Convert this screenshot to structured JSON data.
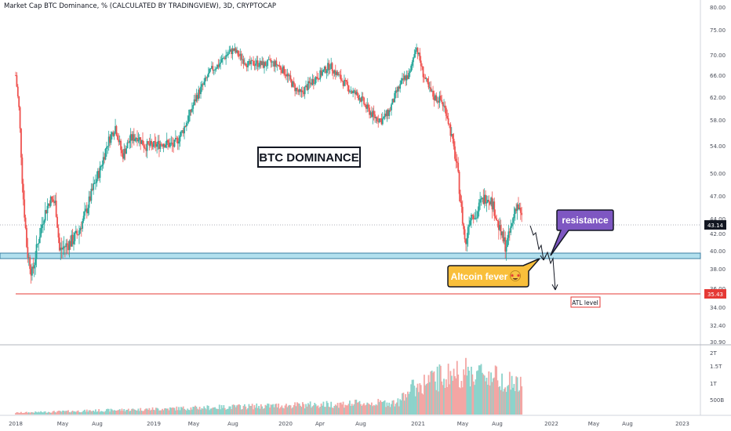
{
  "header": {
    "title": "Market Cap BTC Dominance, % (CALCULATED BY TRADINGVIEW), 3D, CRYPTOCAP"
  },
  "chart_data": [
    {
      "type": "candlestick",
      "title": "Market Cap BTC Dominance, % (CALCULATED BY TRADINGVIEW), 3D, CRYPTOCAP",
      "y_unit": "%",
      "ylim": [
        30.9,
        80.0
      ],
      "y_ticks": [
        "80.00",
        "75.00",
        "70.00",
        "66.00",
        "62.00",
        "58.00",
        "54.00",
        "50.00",
        "47.00",
        "44.00",
        "42.00",
        "40.00",
        "38.00",
        "36.00",
        "34.00",
        "32.40",
        "30.90"
      ],
      "x_ticks": [
        "2018",
        "May",
        "Aug",
        "2019",
        "May",
        "Aug",
        "2020",
        "Apr",
        "Aug",
        "2021",
        "May",
        "Aug",
        "2022",
        "May",
        "Aug",
        "2023"
      ],
      "close_points": [
        {
          "x": "2018-01-01",
          "y": 66.0
        },
        {
          "x": "2018-01-10",
          "y": 60.0
        },
        {
          "x": "2018-01-20",
          "y": 48.0
        },
        {
          "x": "2018-02-01",
          "y": 40.0
        },
        {
          "x": "2018-02-15",
          "y": 37.5
        },
        {
          "x": "2018-03-01",
          "y": 40.5
        },
        {
          "x": "2018-03-20",
          "y": 44.5
        },
        {
          "x": "2018-04-05",
          "y": 46.5
        },
        {
          "x": "2018-04-20",
          "y": 46.0
        },
        {
          "x": "2018-05-01",
          "y": 40.0
        },
        {
          "x": "2018-05-15",
          "y": 40.5
        },
        {
          "x": "2018-06-01",
          "y": 41.0
        },
        {
          "x": "2018-06-20",
          "y": 42.0
        },
        {
          "x": "2018-07-10",
          "y": 44.5
        },
        {
          "x": "2018-08-01",
          "y": 48.0
        },
        {
          "x": "2018-08-20",
          "y": 50.5
        },
        {
          "x": "2018-09-10",
          "y": 54.5
        },
        {
          "x": "2018-10-01",
          "y": 57.0
        },
        {
          "x": "2018-10-20",
          "y": 52.5
        },
        {
          "x": "2018-11-10",
          "y": 55.0
        },
        {
          "x": "2018-12-01",
          "y": 55.5
        },
        {
          "x": "2018-12-20",
          "y": 54.0
        },
        {
          "x": "2019-01-15",
          "y": 54.0
        },
        {
          "x": "2019-02-10",
          "y": 54.5
        },
        {
          "x": "2019-03-10",
          "y": 54.0
        },
        {
          "x": "2019-04-01",
          "y": 56.0
        },
        {
          "x": "2019-04-20",
          "y": 58.5
        },
        {
          "x": "2019-05-10",
          "y": 62.0
        },
        {
          "x": "2019-06-01",
          "y": 64.5
        },
        {
          "x": "2019-06-20",
          "y": 67.0
        },
        {
          "x": "2019-07-10",
          "y": 68.0
        },
        {
          "x": "2019-08-01",
          "y": 70.0
        },
        {
          "x": "2019-08-20",
          "y": 71.0
        },
        {
          "x": "2019-09-10",
          "y": 69.5
        },
        {
          "x": "2019-10-01",
          "y": 68.0
        },
        {
          "x": "2019-10-20",
          "y": 68.5
        },
        {
          "x": "2019-11-10",
          "y": 68.0
        },
        {
          "x": "2019-12-01",
          "y": 68.5
        },
        {
          "x": "2019-12-20",
          "y": 68.0
        },
        {
          "x": "2020-01-10",
          "y": 66.5
        },
        {
          "x": "2020-02-01",
          "y": 64.0
        },
        {
          "x": "2020-02-20",
          "y": 62.5
        },
        {
          "x": "2020-03-10",
          "y": 64.0
        },
        {
          "x": "2020-04-01",
          "y": 65.5
        },
        {
          "x": "2020-04-20",
          "y": 66.5
        },
        {
          "x": "2020-05-10",
          "y": 68.0
        },
        {
          "x": "2020-06-01",
          "y": 66.0
        },
        {
          "x": "2020-06-20",
          "y": 64.5
        },
        {
          "x": "2020-07-10",
          "y": 63.0
        },
        {
          "x": "2020-08-01",
          "y": 62.0
        },
        {
          "x": "2020-08-20",
          "y": 60.0
        },
        {
          "x": "2020-09-10",
          "y": 58.5
        },
        {
          "x": "2020-10-01",
          "y": 58.0
        },
        {
          "x": "2020-10-20",
          "y": 59.5
        },
        {
          "x": "2020-11-10",
          "y": 63.0
        },
        {
          "x": "2020-12-01",
          "y": 65.5
        },
        {
          "x": "2020-12-15",
          "y": 66.0
        },
        {
          "x": "2021-01-01",
          "y": 72.0
        },
        {
          "x": "2021-01-10",
          "y": 69.5
        },
        {
          "x": "2021-01-20",
          "y": 66.5
        },
        {
          "x": "2021-02-05",
          "y": 63.5
        },
        {
          "x": "2021-02-20",
          "y": 62.0
        },
        {
          "x": "2021-03-10",
          "y": 61.5
        },
        {
          "x": "2021-03-25",
          "y": 59.5
        },
        {
          "x": "2021-04-05",
          "y": 56.5
        },
        {
          "x": "2021-04-15",
          "y": 53.5
        },
        {
          "x": "2021-04-25",
          "y": 50.5
        },
        {
          "x": "2021-05-05",
          "y": 45.5
        },
        {
          "x": "2021-05-12",
          "y": 42.5
        },
        {
          "x": "2021-05-18",
          "y": 40.5
        },
        {
          "x": "2021-05-25",
          "y": 43.5
        },
        {
          "x": "2021-06-05",
          "y": 45.0
        },
        {
          "x": "2021-06-15",
          "y": 44.0
        },
        {
          "x": "2021-06-25",
          "y": 46.0
        },
        {
          "x": "2021-07-05",
          "y": 46.5
        },
        {
          "x": "2021-07-15",
          "y": 47.0
        },
        {
          "x": "2021-07-25",
          "y": 46.5
        },
        {
          "x": "2021-08-05",
          "y": 45.0
        },
        {
          "x": "2021-08-15",
          "y": 43.0
        },
        {
          "x": "2021-08-25",
          "y": 41.5
        },
        {
          "x": "2021-09-05",
          "y": 40.5
        },
        {
          "x": "2021-09-12",
          "y": 41.5
        },
        {
          "x": "2021-09-20",
          "y": 43.0
        },
        {
          "x": "2021-09-28",
          "y": 45.0
        },
        {
          "x": "2021-10-05",
          "y": 46.0
        },
        {
          "x": "2021-10-12",
          "y": 45.0
        },
        {
          "x": "2021-10-20",
          "y": 43.5
        }
      ],
      "volume_axis": {
        "ticks": [
          "2T",
          "1.5T",
          "1T",
          "500B"
        ],
        "max": 2000000000000
      },
      "levels": [
        {
          "value": 43.14,
          "label": "43.14",
          "color": "#131722",
          "style": "dotted"
        },
        {
          "value": 35.43,
          "label": "35.43",
          "color": "#e53935",
          "style": "solid"
        }
      ],
      "support_zone": [
        39.2,
        40.0
      ],
      "annotations": [
        {
          "text": "BTC DOMINANCE"
        },
        {
          "text": "resistance"
        },
        {
          "text": "Altcoin fever",
          "emoji": "🤩"
        },
        {
          "text": "ATL level"
        }
      ],
      "colors": {
        "up": "#26a69a",
        "down": "#ef5350",
        "zone_fill": "#b2e0ee",
        "zone_edge": "#3b7ea1",
        "resistance_box": "#7e57c2",
        "altcoin_box": "#f9bf3b",
        "atl_box_border": "#e53935"
      },
      "grid": false
    }
  ]
}
